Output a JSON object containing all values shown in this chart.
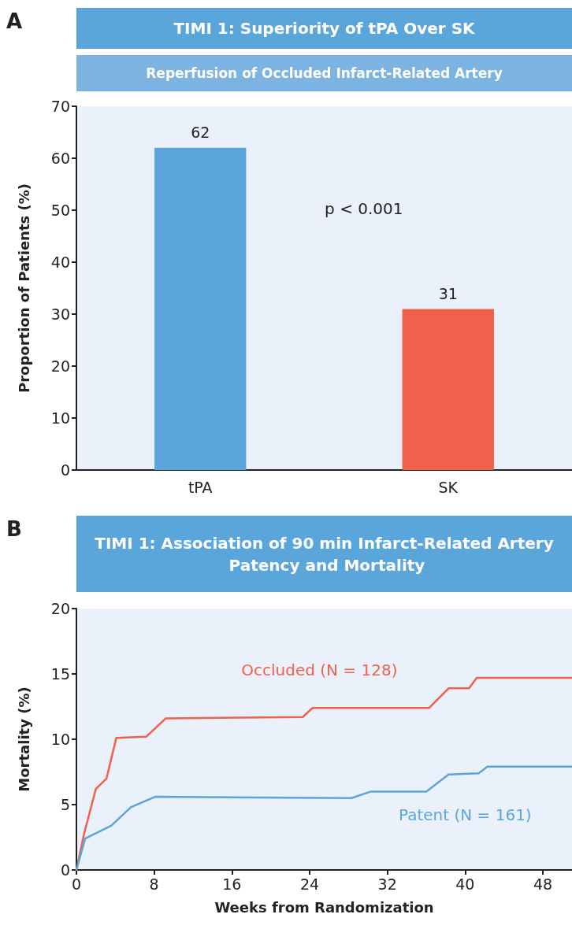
{
  "chart_data": [
    {
      "type": "bar",
      "title": "TIMI 1: Superiority of tPA Over SK",
      "subtitle": "Reperfusion of Occluded Infarct-Related Artery",
      "ylabel": "Proportion of Patients (%)",
      "annotations": [
        "A",
        "p < 0.001"
      ],
      "categories": [
        "tPA",
        "SK"
      ],
      "values": [
        62,
        31
      ],
      "colors": [
        "#5aa5da",
        "#f0604a"
      ],
      "ylim": [
        0,
        70
      ],
      "yticks": [
        0,
        10,
        20,
        30,
        40,
        50,
        60,
        70
      ],
      "data_labels": true,
      "grid": false,
      "legend": false
    },
    {
      "type": "line",
      "title": "TIMI 1: Association of 90 min Infarct-Related Artery Patency and Mortality",
      "xlabel": "Weeks from Randomization",
      "ylabel": "Mortality (%)",
      "annotations": [
        "B"
      ],
      "series": [
        {
          "name": "Occluded (N = 128)",
          "color": "#f0604a",
          "x": [
            0,
            0.8,
            2.0,
            3.1,
            4.1,
            7.2,
            9.2,
            23.3,
            24.3,
            36.3,
            38.3,
            40.4,
            41.2,
            51
          ],
          "values": [
            0,
            2.8,
            6.2,
            7.0,
            10.1,
            10.2,
            11.6,
            11.7,
            12.4,
            12.4,
            13.9,
            13.9,
            14.7,
            14.7
          ]
        },
        {
          "name": "Patent (N = 161)",
          "color": "#5aa5da",
          "x": [
            0,
            0.9,
            3.6,
            5.6,
            8.1,
            28.3,
            30.3,
            36.0,
            38.3,
            41.4,
            42.3,
            51
          ],
          "values": [
            0,
            2.4,
            3.4,
            4.8,
            5.6,
            5.5,
            6.0,
            6.0,
            7.3,
            7.4,
            7.9,
            7.9
          ]
        }
      ],
      "xlim": [
        0,
        51
      ],
      "xticks": [
        0,
        8,
        16,
        24,
        32,
        40,
        48
      ],
      "ylim": [
        0,
        20
      ],
      "yticks": [
        0,
        5,
        10,
        15,
        20
      ],
      "marker": "none",
      "line_style": "solid",
      "grid": false,
      "legend": false
    }
  ]
}
